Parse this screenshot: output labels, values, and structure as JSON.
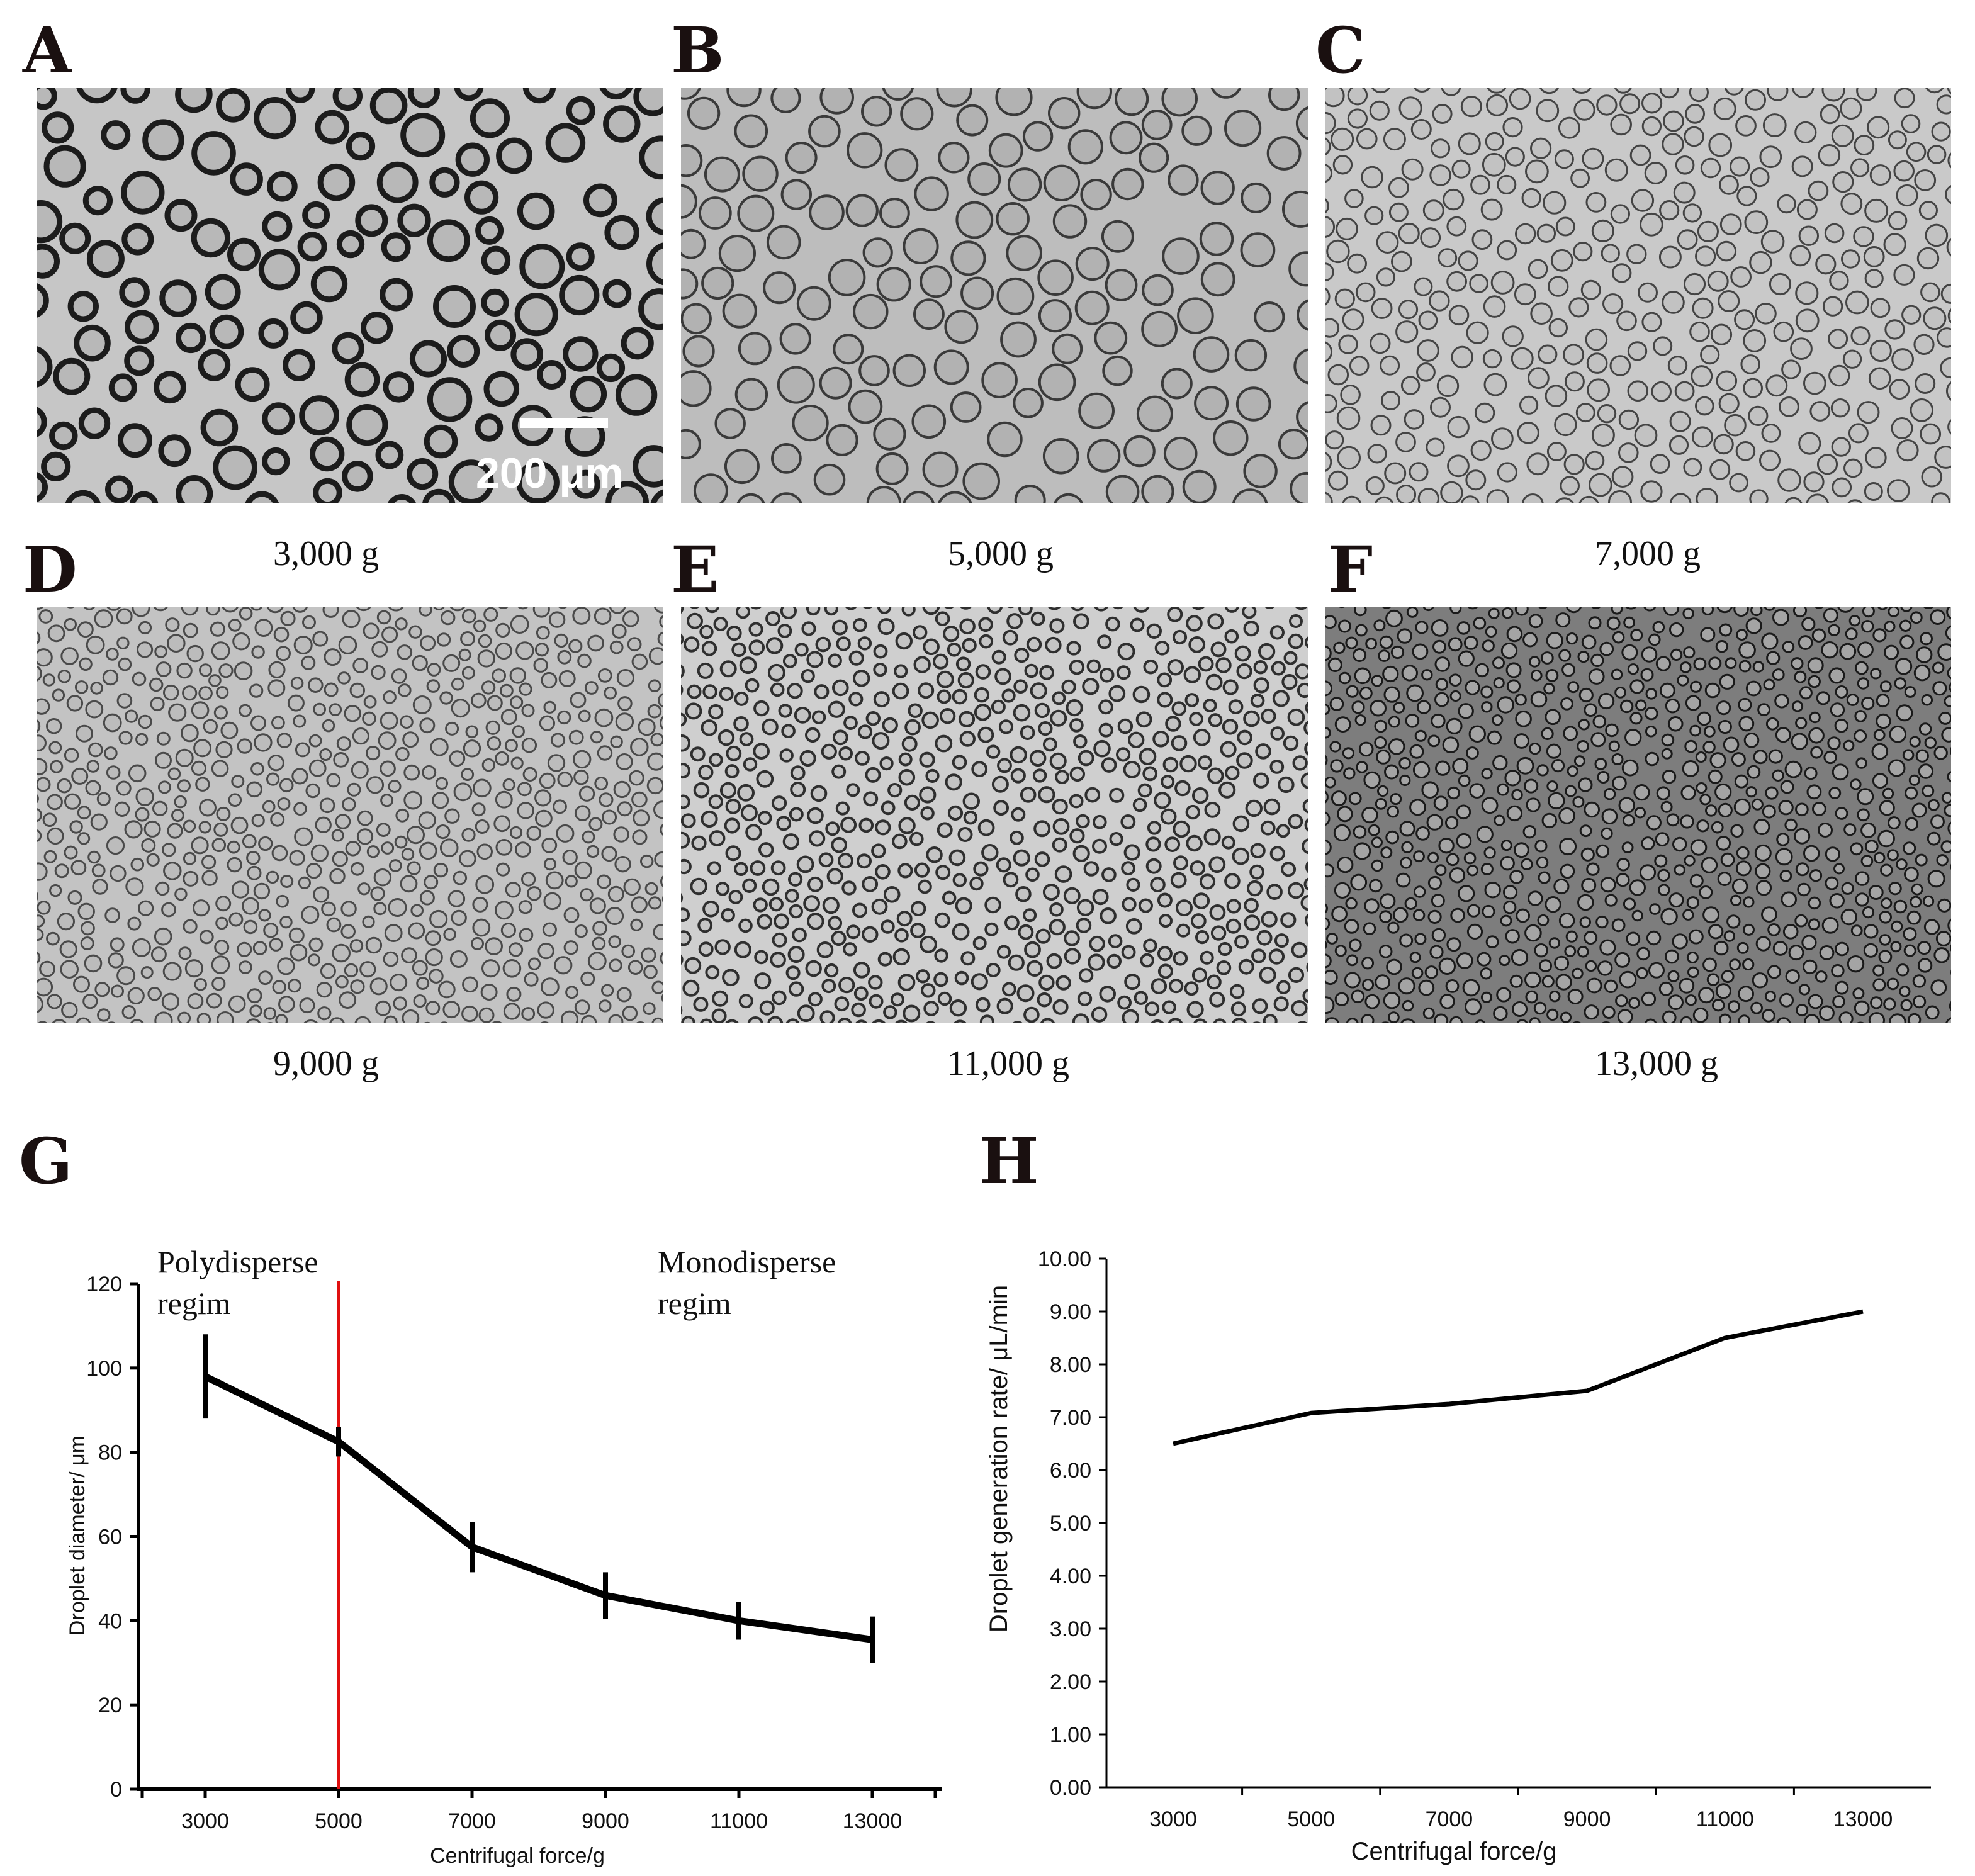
{
  "panels": [
    {
      "letter": "A",
      "caption": "3,000 g",
      "shade": "#c6c6c6",
      "ring": "#1c1c1c",
      "inner": "#b8b8b8"
    },
    {
      "letter": "B",
      "caption": "5,000 g",
      "shade": "#bdbdbd",
      "ring": "#3a3a3a",
      "inner": "#b2b2b2"
    },
    {
      "letter": "C",
      "caption": "7,000 g",
      "shade": "#c9c9c9",
      "ring": "#444444",
      "inner": "#c2c2c2"
    },
    {
      "letter": "D",
      "caption": "9,000 g",
      "shade": "#c3c3c3",
      "ring": "#4a4a4a",
      "inner": "#bcbcbc"
    },
    {
      "letter": "E",
      "caption": "11,000 g",
      "shade": "#cfcfcf",
      "ring": "#2f2f2f",
      "inner": "#c4c4c4"
    },
    {
      "letter": "F",
      "caption": "13,000 g",
      "shade": "#7d7d7d",
      "ring": "#1a1a1a",
      "inner": "#a4a4a4"
    }
  ],
  "scale_bar_label": "200 μm",
  "colors": {
    "line": "#000000",
    "regime_divider": "#e01010"
  },
  "chart_data": [
    {
      "letter": "G",
      "type": "line",
      "x": [
        3000,
        5000,
        7000,
        9000,
        11000,
        13000
      ],
      "series": [
        {
          "name": "Droplet diameter",
          "values": [
            98,
            82.5,
            57.5,
            46,
            40,
            35.5
          ],
          "error": [
            10,
            3.5,
            6,
            5.5,
            4.5,
            5.5
          ]
        }
      ],
      "xlabel": "Centrifugal force/g",
      "ylabel": "Droplet diameter/ μm",
      "ylim": [
        0,
        120
      ],
      "yticks": [
        0,
        20,
        40,
        60,
        80,
        100,
        120
      ],
      "xticks": [
        "3000",
        "5000",
        "7000",
        "9000",
        "11000",
        "13000"
      ],
      "divider_x": 5000,
      "annotations": [
        {
          "line1": "Polydisperse",
          "line2": "regim"
        },
        {
          "line1": "Monodisperse",
          "line2": "regim"
        }
      ]
    },
    {
      "letter": "H",
      "type": "line",
      "x": [
        3000,
        5000,
        7000,
        9000,
        11000,
        13000
      ],
      "series": [
        {
          "name": "Droplet generation rate",
          "values": [
            6.5,
            7.08,
            7.25,
            7.5,
            8.5,
            9.0
          ]
        }
      ],
      "xlabel": "Centrifugal force/g",
      "ylabel": "Droplet generation rate/  μL/min",
      "ylim": [
        0,
        10
      ],
      "yticks": [
        "0.00",
        "1.00",
        "2.00",
        "3.00",
        "4.00",
        "5.00",
        "6.00",
        "7.00",
        "8.00",
        "9.00",
        "10.00"
      ],
      "xticks": [
        "3000",
        "5000",
        "7000",
        "9000",
        "11000",
        "13000"
      ]
    }
  ]
}
